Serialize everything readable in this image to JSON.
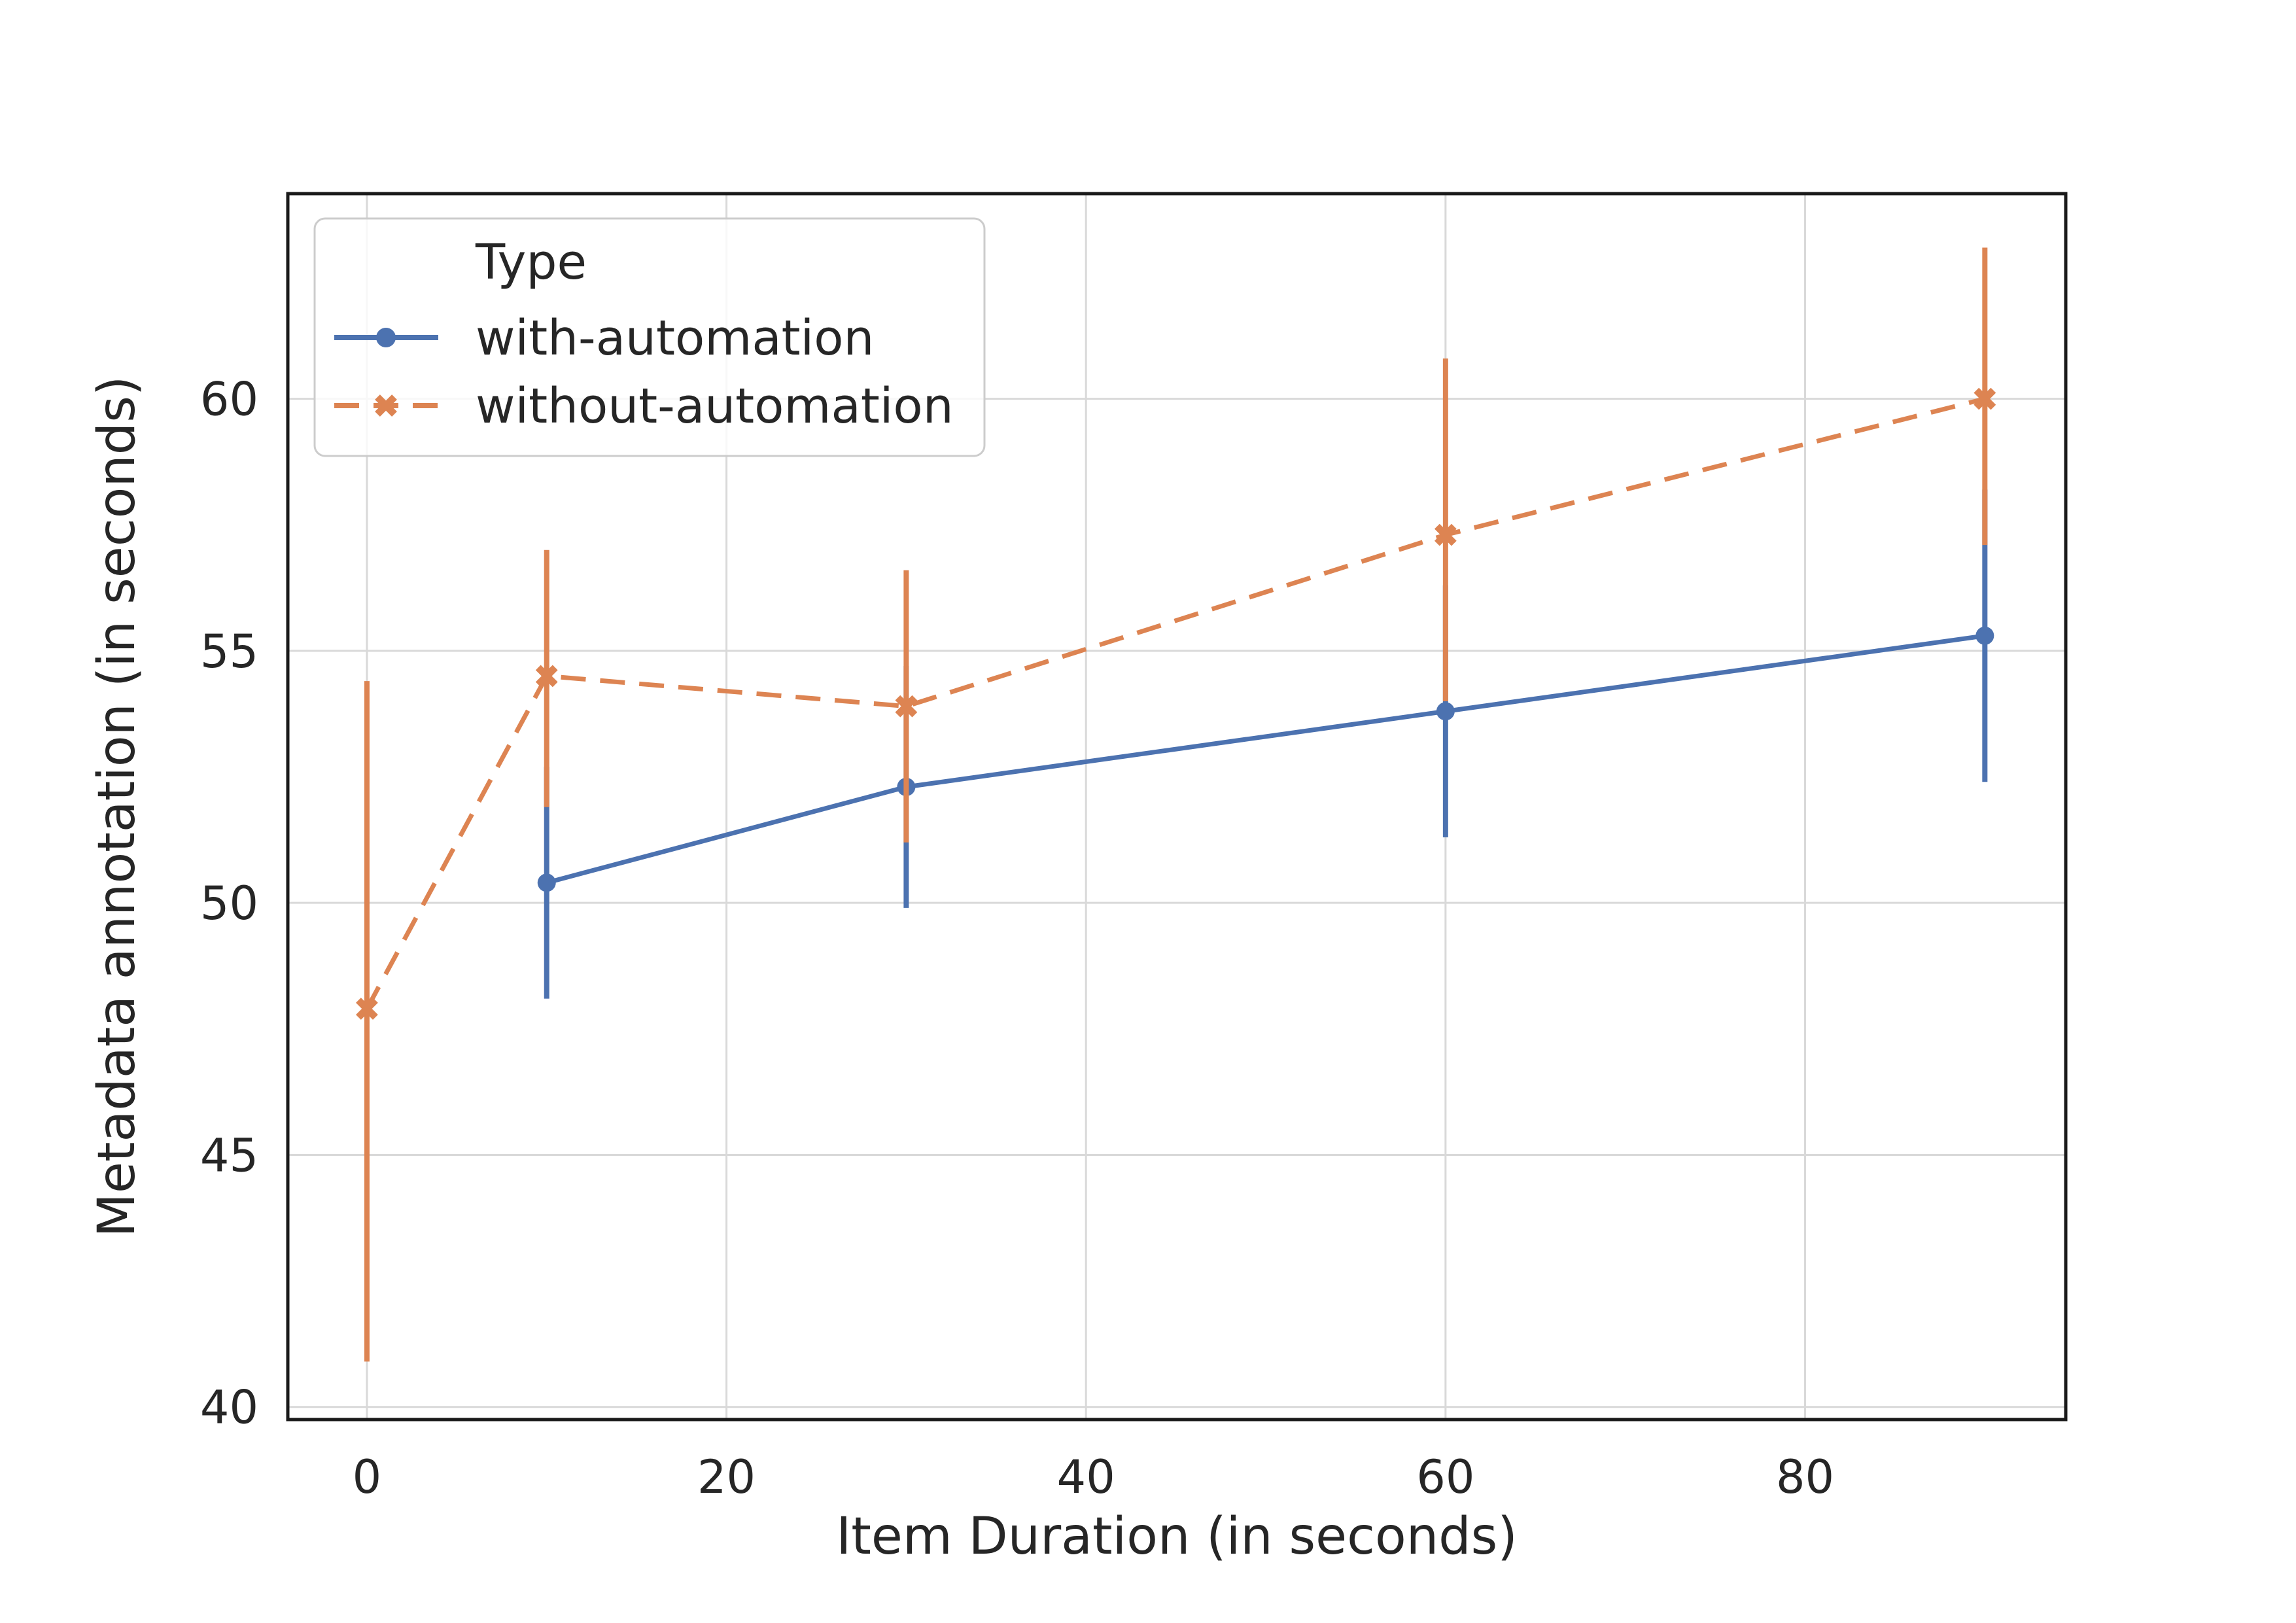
{
  "figure": {
    "background_color": "#ffffff",
    "text_color": "#262626",
    "grid_color": "#d9d9d9",
    "spine_color": "#1a1a1a",
    "legend_border_color": "#cccccc"
  },
  "chart_data": {
    "type": "line",
    "title": "",
    "xlabel": "Item Duration (in seconds)",
    "ylabel": "Metadata annotation (in seconds)",
    "xlim": [
      -4.4,
      94.5
    ],
    "ylim": [
      39.75,
      64.07
    ],
    "xticks": [
      0,
      20,
      40,
      60,
      80
    ],
    "yticks": [
      40,
      45,
      50,
      55,
      60
    ],
    "grid": true,
    "legend": {
      "title": "Type",
      "position": "upper-left"
    },
    "series": [
      {
        "name": "with-automation",
        "color": "#4C72B0",
        "line_style": "solid",
        "marker": "circle",
        "x": [
          10,
          30,
          60,
          90
        ],
        "y": [
          50.4,
          52.3,
          53.8,
          55.3
        ],
        "err_low": [
          48.1,
          49.9,
          51.3,
          52.4
        ],
        "err_high": [
          52.7,
          54.7,
          56.3,
          58.2
        ]
      },
      {
        "name": "without-automation",
        "color": "#DD8452",
        "line_style": "dashed",
        "marker": "x",
        "x": [
          0,
          10,
          30,
          60,
          90
        ],
        "y": [
          47.9,
          54.5,
          53.9,
          57.3,
          60.0
        ],
        "err_low": [
          40.9,
          51.9,
          51.2,
          54.0,
          57.1
        ],
        "err_high": [
          54.4,
          57.0,
          56.6,
          60.8,
          63.0
        ]
      }
    ]
  }
}
